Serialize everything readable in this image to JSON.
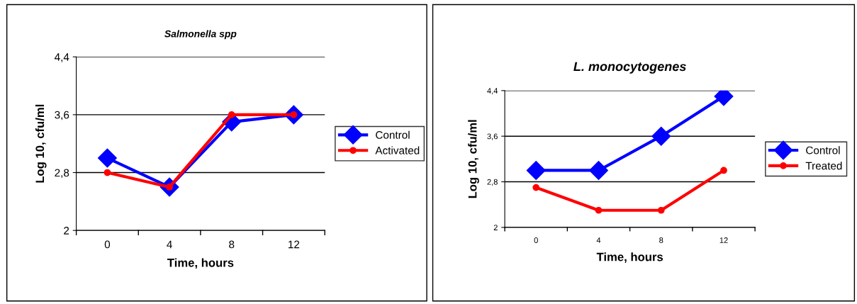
{
  "chart_data": [
    {
      "type": "line",
      "title": "Salmonella spp",
      "xlabel": "Time, hours",
      "ylabel": "Log 10, cfu/ml",
      "categories": [
        "0",
        "4",
        "8",
        "12"
      ],
      "series": [
        {
          "name": "Control",
          "color": "#0000ff",
          "marker": "diamond",
          "values": [
            3.0,
            2.6,
            3.5,
            3.6
          ]
        },
        {
          "name": "Activated",
          "color": "#ff0000",
          "marker": "circle",
          "values": [
            2.8,
            2.6,
            3.6,
            3.6
          ]
        }
      ],
      "ylim": [
        2,
        4.4
      ],
      "yticks": [
        2,
        {
          "value": 2.8,
          "label": "2,8"
        },
        {
          "value": 3.6,
          "label": "3,6"
        },
        {
          "value": 4.4,
          "label": "4,4"
        }
      ],
      "grid": "y",
      "legend": "right"
    },
    {
      "type": "line",
      "title": "L. monocytogenes",
      "xlabel": "Time, hours",
      "ylabel": "Log 10, cfu/ml",
      "categories": [
        "0",
        "4",
        "8",
        "12"
      ],
      "series": [
        {
          "name": "Control",
          "color": "#0000ff",
          "marker": "diamond",
          "values": [
            3.0,
            3.0,
            3.6,
            4.3
          ]
        },
        {
          "name": "Treated",
          "color": "#ff0000",
          "marker": "circle",
          "values": [
            2.7,
            2.3,
            2.3,
            3.0
          ]
        }
      ],
      "ylim": [
        2,
        4.4
      ],
      "yticks": [
        2,
        {
          "value": 2.8,
          "label": "2,8"
        },
        {
          "value": 3.6,
          "label": "3,6"
        },
        {
          "value": 4.4,
          "label": "4,4"
        }
      ],
      "grid": "y",
      "legend": "right"
    }
  ]
}
